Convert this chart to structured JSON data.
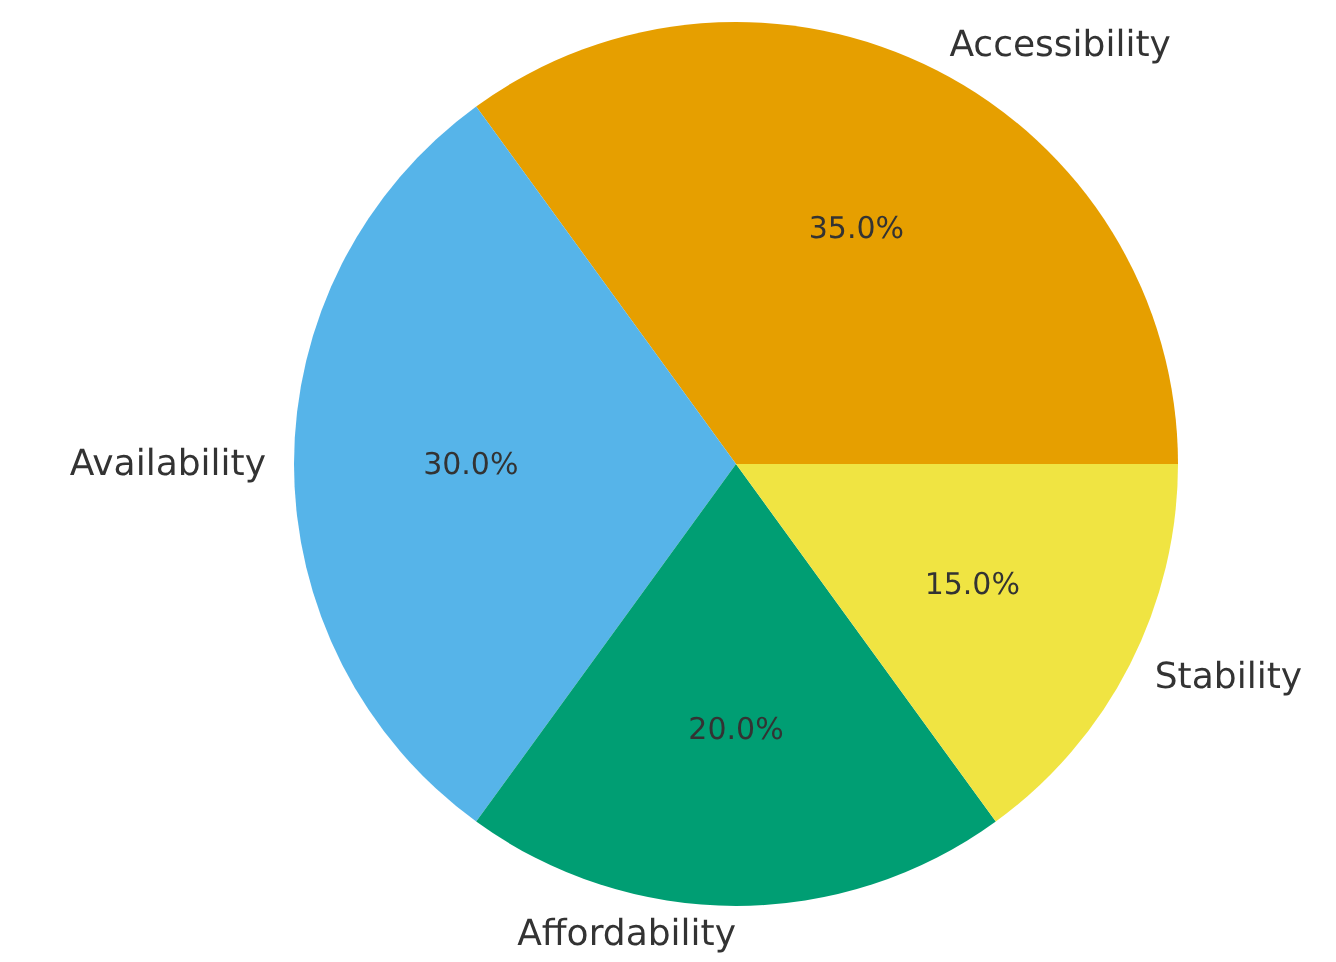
{
  "chart_data": {
    "type": "pie",
    "categories": [
      "Accessibility",
      "Availability",
      "Affordability",
      "Stability"
    ],
    "values": [
      35,
      30,
      20,
      15
    ],
    "colors": [
      "#e69f00",
      "#56b4e9",
      "#009e73",
      "#f0e442"
    ],
    "value_labels": [
      "35.0%",
      "30.0%",
      "20.0%",
      "15.0%"
    ]
  }
}
